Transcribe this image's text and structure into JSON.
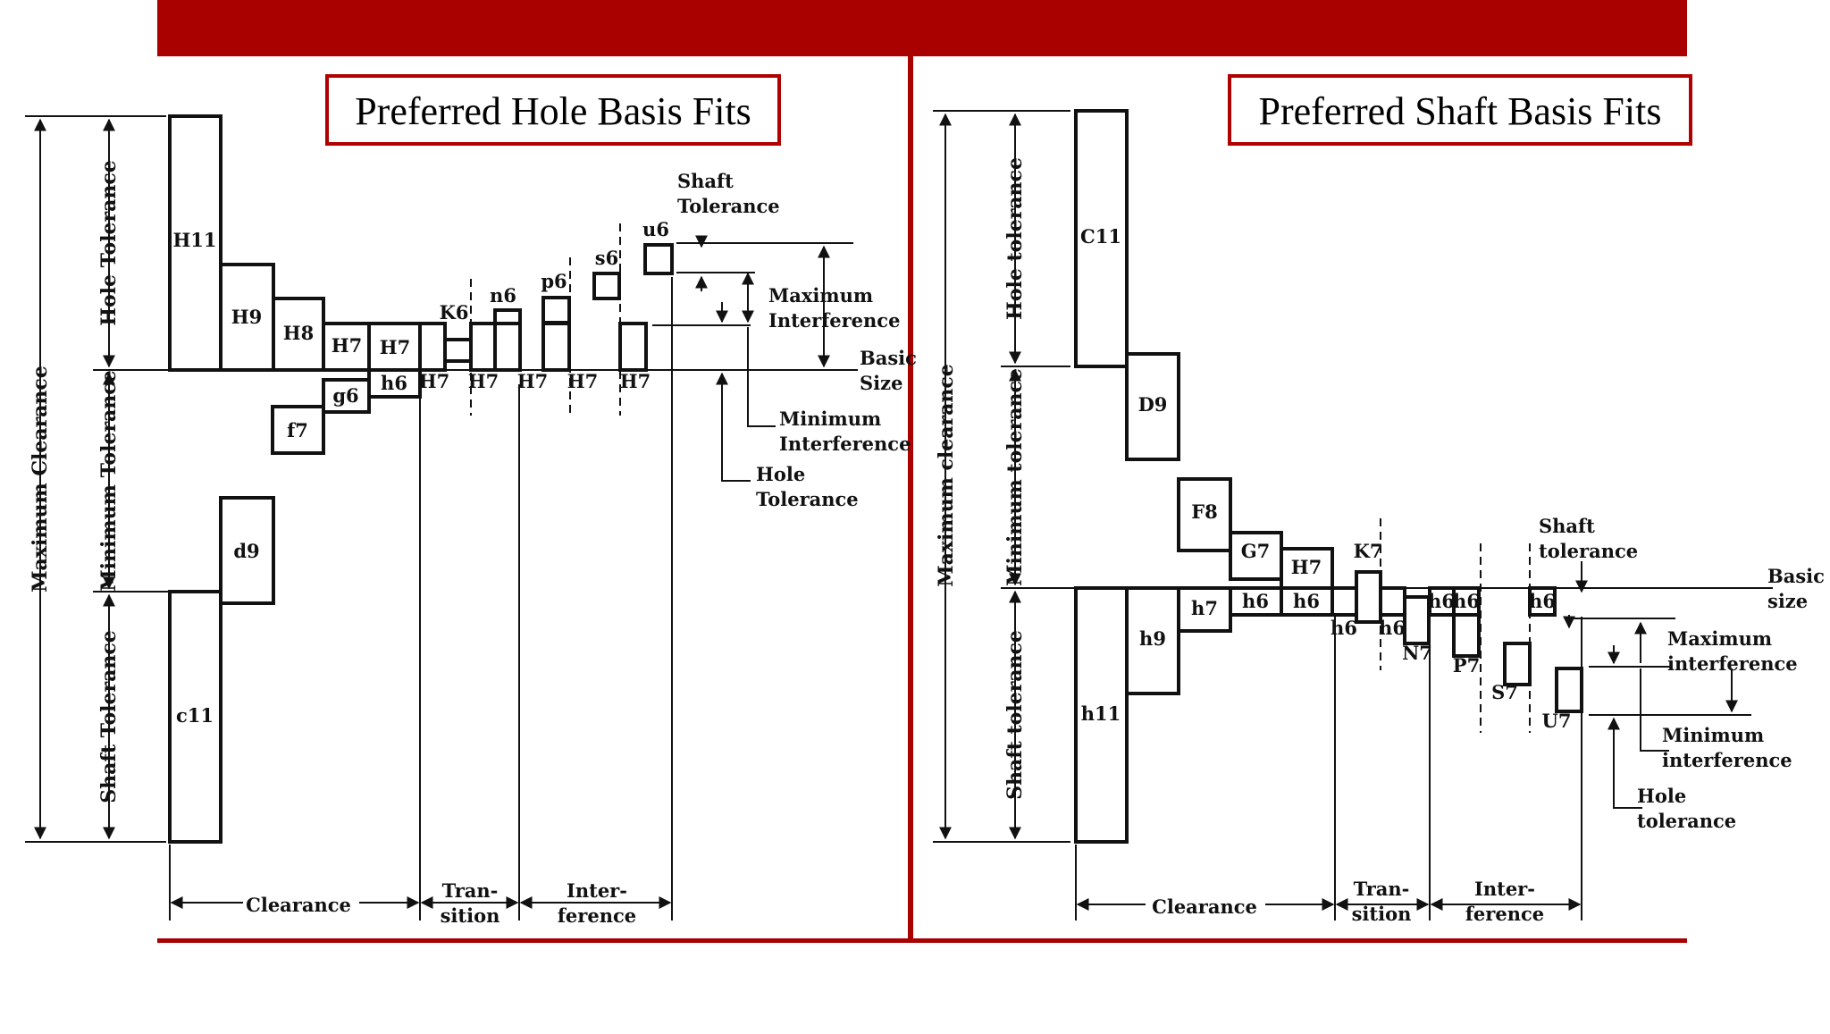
{
  "colors": {
    "accent": "#a90000",
    "ink": "#111111"
  },
  "left": {
    "title": "Preferred Hole Basis Fits",
    "axis": {
      "max_clearance": "Maximum Clearance",
      "hole_tolerance": "Hole Tolerance",
      "min_tolerance": "Minimum Tolerance",
      "shaft_tolerance": "Shaft Tolerance"
    },
    "boxes": {
      "H11": "H11",
      "H9": "H9",
      "H8": "H8",
      "H7a": "H7",
      "H7b": "H7",
      "d9": "d9",
      "c11": "c11",
      "f7": "f7",
      "g6": "g6",
      "h6": "h6",
      "K6": "K6",
      "n6": "n6",
      "p6": "p6",
      "s6": "s6",
      "u6": "u6",
      "H7_1": "H7",
      "H7_2": "H7",
      "H7_3": "H7",
      "H7_4": "H7",
      "H7_5": "H7"
    },
    "notes": {
      "shaft_tol_1": "Shaft",
      "shaft_tol_2": "Tolerance",
      "max_int_1": "Maximum",
      "max_int_2": "Interference",
      "basic_1": "Basic",
      "basic_2": "Size",
      "min_int_1": "Minimum",
      "min_int_2": "Interference",
      "hole_tol_1": "Hole",
      "hole_tol_2": "Tolerance"
    },
    "bottom": {
      "clearance": "Clearance",
      "trans_1": "Tran-",
      "trans_2": "sition",
      "inter_1": "Inter-",
      "inter_2": "ference"
    }
  },
  "right": {
    "title": "Preferred Shaft Basis Fits",
    "axis": {
      "max_clearance": "Maximum clearance",
      "hole_tolerance": "Hole tolerance",
      "min_tolerance": "Minimum tolerance",
      "shaft_tolerance": "Shaft tolerance"
    },
    "boxes": {
      "C11": "C11",
      "D9": "D9",
      "F8": "F8",
      "G7": "G7",
      "H7": "H7",
      "h11": "h11",
      "h9": "h9",
      "h7": "h7",
      "h6a": "h6",
      "h6b": "h6",
      "K7": "K7",
      "N7": "N7",
      "P7": "P7",
      "S7": "S7",
      "U7": "U7",
      "h6_1": "h6",
      "h6_2": "h6",
      "h6_3": "h6",
      "h6_4": "h6",
      "h6_5": "h6"
    },
    "notes": {
      "shaft_tol_1": "Shaft",
      "shaft_tol_2": "tolerance",
      "basic_1": "Basic",
      "basic_2": "size",
      "max_int_1": "Maximum",
      "max_int_2": "interference",
      "min_int_1": "Minimum",
      "min_int_2": "interference",
      "hole_tol_1": "Hole",
      "hole_tol_2": "tolerance"
    },
    "bottom": {
      "clearance": "Clearance",
      "trans_1": "Tran-",
      "trans_2": "sition",
      "inter_1": "Inter-",
      "inter_2": "ference"
    }
  }
}
